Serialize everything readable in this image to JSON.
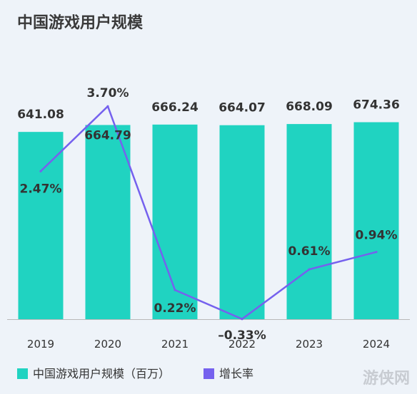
{
  "title": "中国游戏用户规模",
  "watermark": "游侠网",
  "chart_data": {
    "type": "bar",
    "categories": [
      "2019",
      "2020",
      "2021",
      "2022",
      "2023",
      "2024"
    ],
    "series": [
      {
        "name": "中国游戏用户规模（百万）",
        "type": "bar",
        "values": [
          641.08,
          664.79,
          666.24,
          664.07,
          668.09,
          674.36
        ],
        "labels": [
          "641.08",
          "664.79",
          "666.24",
          "664.07",
          "668.09",
          "674.36"
        ]
      },
      {
        "name": "增长率",
        "type": "line",
        "values": [
          2.47,
          3.7,
          0.22,
          -0.33,
          0.61,
          0.94
        ],
        "labels": [
          "2.47%",
          "3.70%",
          "0.22%",
          "–0.33%",
          "0.61%",
          "0.94%"
        ]
      }
    ],
    "colors": {
      "bar": "#20d3c1",
      "line": "#7561ee",
      "axis": "#b8b8b8"
    },
    "bar_axis_range": [
      0,
      700
    ],
    "line_axis_range": [
      -0.9,
      4.04
    ],
    "grid": false,
    "legend_position": "bottom-left"
  }
}
